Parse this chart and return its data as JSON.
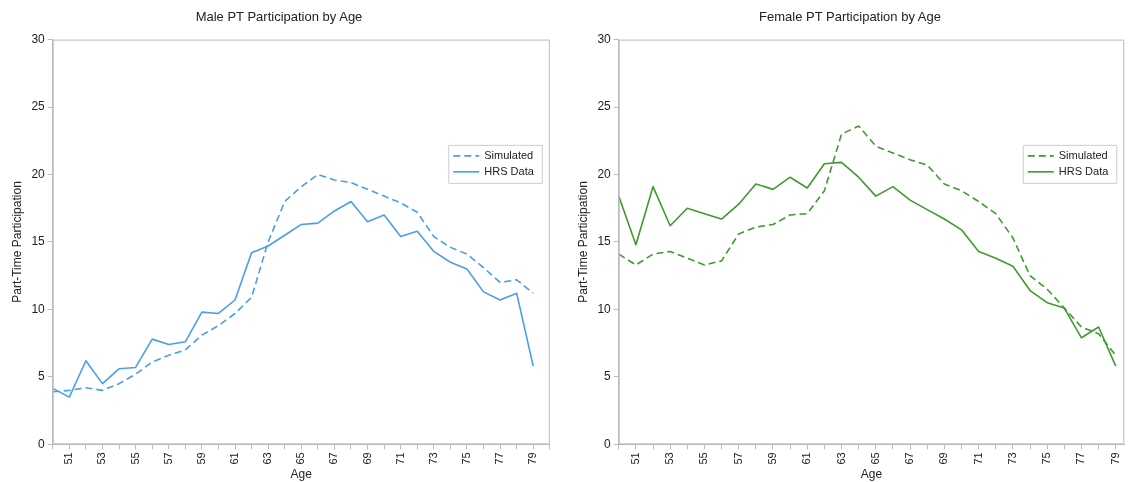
{
  "chart_data": [
    {
      "type": "line",
      "title": "Male PT Participation by Age",
      "xlabel": "Age",
      "ylabel": "Part-Time Participation",
      "x": [
        50,
        51,
        52,
        53,
        54,
        55,
        56,
        57,
        58,
        59,
        60,
        61,
        62,
        63,
        64,
        65,
        66,
        67,
        68,
        69,
        70,
        71,
        72,
        73,
        74,
        75,
        76,
        77,
        78,
        79
      ],
      "series": [
        {
          "name": "Simulated",
          "color": "#4a9fe8",
          "line_style": "dashed",
          "values": [
            3.9,
            4.0,
            4.2,
            4.0,
            4.5,
            5.2,
            6.1,
            6.6,
            7.0,
            8.1,
            8.8,
            9.7,
            10.9,
            15.0,
            18.0,
            19.1,
            20.0,
            19.6,
            19.4,
            18.9,
            18.4,
            17.9,
            17.2,
            15.4,
            14.6,
            14.1,
            13.1,
            12.0,
            12.2,
            11.2
          ]
        },
        {
          "name": "HRS Data",
          "color": "#4a9fe8",
          "line_style": "solid",
          "values": [
            4.15,
            3.5,
            6.2,
            4.5,
            5.6,
            5.7,
            7.8,
            7.4,
            7.6,
            9.8,
            9.7,
            10.7,
            14.2,
            14.7,
            15.5,
            16.3,
            16.4,
            17.3,
            18.0,
            16.5,
            17.0,
            15.4,
            15.8,
            14.3,
            13.5,
            13.0,
            11.3,
            10.7,
            11.2,
            5.8
          ]
        }
      ],
      "xlim": [
        50,
        80
      ],
      "ylim": [
        0,
        30
      ],
      "xticks": [
        {
          "value": 50,
          "label": null
        },
        51,
        {
          "value": 52,
          "label": null
        },
        53,
        {
          "value": 54,
          "label": null
        },
        55,
        {
          "value": 56,
          "label": null
        },
        57,
        {
          "value": 58,
          "label": null
        },
        59,
        {
          "value": 60,
          "label": null
        },
        61,
        {
          "value": 62,
          "label": null
        },
        63,
        {
          "value": 64,
          "label": null
        },
        65,
        {
          "value": 66,
          "label": null
        },
        67,
        {
          "value": 68,
          "label": null
        },
        69,
        {
          "value": 70,
          "label": null
        },
        71,
        {
          "value": 72,
          "label": null
        },
        73,
        {
          "value": 74,
          "label": null
        },
        75,
        {
          "value": 76,
          "label": null
        },
        77,
        {
          "value": 78,
          "label": null
        },
        79,
        {
          "value": 80,
          "label": null
        }
      ],
      "yticks": [
        0,
        5,
        10,
        15,
        20,
        25,
        30
      ],
      "legend": "top right"
    },
    {
      "type": "line",
      "title": "Female PT Participation by Age",
      "xlabel": "Age",
      "ylabel": "Part-Time Participation",
      "x": [
        50,
        51,
        52,
        53,
        54,
        55,
        56,
        57,
        58,
        59,
        60,
        61,
        62,
        63,
        64,
        65,
        66,
        67,
        68,
        69,
        70,
        71,
        72,
        73,
        74,
        75,
        76,
        77,
        78,
        79
      ],
      "series": [
        {
          "name": "Simulated",
          "color": "#3f9a2f",
          "line_style": "dashed",
          "values": [
            14.1,
            13.3,
            14.1,
            14.3,
            13.8,
            13.3,
            13.6,
            15.6,
            16.1,
            16.3,
            17.0,
            17.1,
            18.8,
            23.0,
            23.6,
            22.1,
            21.6,
            21.1,
            20.7,
            19.3,
            18.8,
            18.0,
            17.1,
            15.3,
            12.5,
            11.5,
            10.1,
            8.7,
            8.2,
            6.6
          ]
        },
        {
          "name": "HRS Data",
          "color": "#3f9a2f",
          "line_style": "solid",
          "values": [
            18.4,
            14.8,
            19.1,
            16.2,
            17.5,
            17.1,
            16.7,
            17.8,
            19.3,
            18.9,
            19.8,
            19.0,
            20.8,
            20.9,
            19.8,
            18.4,
            19.1,
            18.1,
            17.4,
            16.7,
            15.9,
            14.3,
            13.8,
            13.2,
            11.4,
            10.5,
            10.1,
            7.9,
            8.7,
            5.8
          ]
        }
      ],
      "xlim": [
        50,
        79.5
      ],
      "ylim": [
        0,
        30
      ],
      "xticks": [
        {
          "value": 50,
          "label": null
        },
        51,
        {
          "value": 52,
          "label": null
        },
        53,
        {
          "value": 54,
          "label": null
        },
        55,
        {
          "value": 56,
          "label": null
        },
        57,
        {
          "value": 58,
          "label": null
        },
        59,
        {
          "value": 60,
          "label": null
        },
        61,
        {
          "value": 62,
          "label": null
        },
        63,
        {
          "value": 64,
          "label": null
        },
        65,
        {
          "value": 66,
          "label": null
        },
        67,
        {
          "value": 68,
          "label": null
        },
        69,
        {
          "value": 70,
          "label": null
        },
        71,
        {
          "value": 72,
          "label": null
        },
        73,
        {
          "value": 74,
          "label": null
        },
        75,
        {
          "value": 76,
          "label": null
        },
        77,
        {
          "value": 78,
          "label": null
        },
        79
      ],
      "yticks": [
        0,
        5,
        10,
        15,
        20,
        25,
        30
      ],
      "legend": "top right"
    }
  ]
}
